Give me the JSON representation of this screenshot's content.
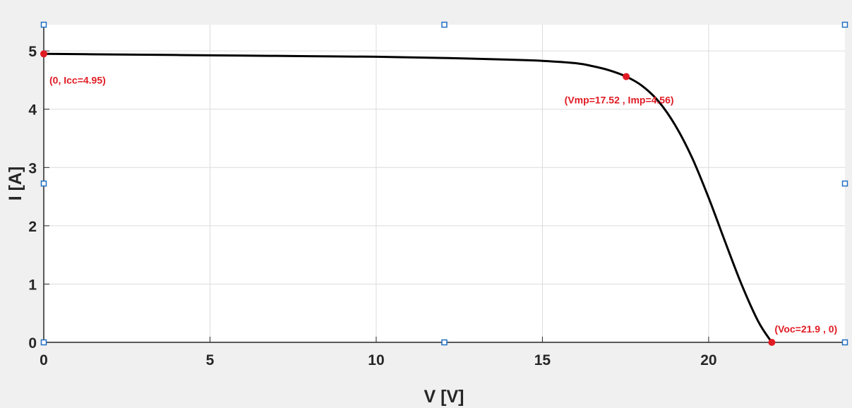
{
  "colors": {
    "background": "#f0f0f0",
    "plot_area": "#ffffff",
    "grid": "#dcdcdc",
    "axis": "#262626",
    "curve": "#000000",
    "marker": "#e01b24",
    "annotation": "#e01b24",
    "handle": "#1f6fc2"
  },
  "chart_data": {
    "type": "line",
    "title": "",
    "xlabel": "V [V]",
    "ylabel": "I [A]",
    "xlim": [
      0,
      24.1
    ],
    "ylim": [
      0,
      5.45
    ],
    "x_ticks": [
      0,
      5,
      10,
      15,
      20
    ],
    "y_ticks": [
      0,
      1,
      2,
      3,
      4,
      5
    ],
    "grid": true,
    "series": [
      {
        "x": [
          0,
          2,
          4,
          6,
          8,
          10,
          12,
          14,
          15,
          16,
          16.5,
          17,
          17.52,
          18,
          18.5,
          19,
          19.5,
          20,
          20.5,
          21,
          21.5,
          21.9
        ],
        "y": [
          4.95,
          4.94,
          4.93,
          4.92,
          4.91,
          4.9,
          4.88,
          4.85,
          4.83,
          4.79,
          4.74,
          4.67,
          4.56,
          4.4,
          4.13,
          3.72,
          3.17,
          2.48,
          1.72,
          0.98,
          0.35,
          0.0
        ]
      }
    ],
    "annotations": [
      {
        "x": 0,
        "y": 4.95,
        "text": "(0, Icc=4.95)"
      },
      {
        "x": 17.52,
        "y": 4.56,
        "text": "(Vmp=17.52 , Imp=4.56)"
      },
      {
        "x": 21.9,
        "y": 0,
        "text": "(Voc=21.9 , 0)"
      }
    ]
  }
}
